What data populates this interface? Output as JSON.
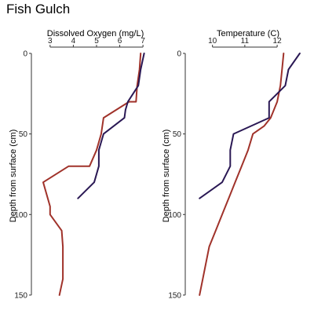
{
  "title": "Fish Gulch",
  "colors": {
    "series_a": "#a0322a",
    "series_b": "#2a1854",
    "axis": "#333333"
  },
  "chart_data": [
    {
      "type": "line",
      "xlabel": "Dissolved Oxygen (mg/L)",
      "ylabel": "Depth from surface (cm)",
      "xlim": [
        2.6,
        7.3
      ],
      "ylim": [
        0,
        152
      ],
      "y_reversed": true,
      "x_axis_position": "top",
      "xticks": [
        3,
        4,
        5,
        6,
        7
      ],
      "yticks": [
        0,
        50,
        100,
        150
      ],
      "grid": false,
      "series": [
        {
          "color": "#a0322a",
          "x": [
            6.9,
            6.85,
            6.75,
            6.7,
            6.4,
            5.3,
            5.2,
            5.0,
            4.7,
            3.8,
            2.7,
            3.0,
            3.0,
            3.5,
            3.55,
            3.55,
            3.4
          ],
          "y": [
            0,
            10,
            20,
            30,
            30,
            40,
            50,
            60,
            70,
            70,
            80,
            95,
            100,
            110,
            120,
            140,
            150
          ]
        },
        {
          "color": "#2a1854",
          "x": [
            7.05,
            6.9,
            6.8,
            6.35,
            6.25,
            6.2,
            5.3,
            5.1,
            5.1,
            4.9,
            4.2
          ],
          "y": [
            0,
            10,
            20,
            30,
            35,
            40,
            50,
            60,
            70,
            80,
            90
          ]
        }
      ]
    },
    {
      "type": "line",
      "xlabel": "Temperature (C)",
      "ylabel": "Depth from surface (cm)",
      "xlim": [
        9.45,
        12.75
      ],
      "ylim": [
        0,
        152
      ],
      "y_reversed": true,
      "x_axis_position": "top",
      "xticks": [
        10,
        11,
        12
      ],
      "yticks": [
        0,
        50,
        100,
        150
      ],
      "grid": false,
      "series": [
        {
          "color": "#a0322a",
          "x": [
            12.2,
            12.15,
            12.1,
            12.0,
            11.8,
            11.6,
            11.25,
            11.1,
            10.9,
            10.7,
            10.5,
            10.3,
            10.1,
            9.9,
            9.7,
            9.6
          ],
          "y": [
            0,
            10,
            20,
            30,
            40,
            45,
            50,
            60,
            70,
            80,
            90,
            100,
            110,
            120,
            140,
            150
          ]
        },
        {
          "color": "#2a1854",
          "x": [
            12.7,
            12.35,
            12.25,
            11.75,
            11.75,
            10.65,
            10.55,
            10.55,
            10.3,
            9.6
          ],
          "y": [
            0,
            10,
            20,
            30,
            40,
            50,
            60,
            70,
            80,
            90
          ]
        }
      ]
    }
  ]
}
